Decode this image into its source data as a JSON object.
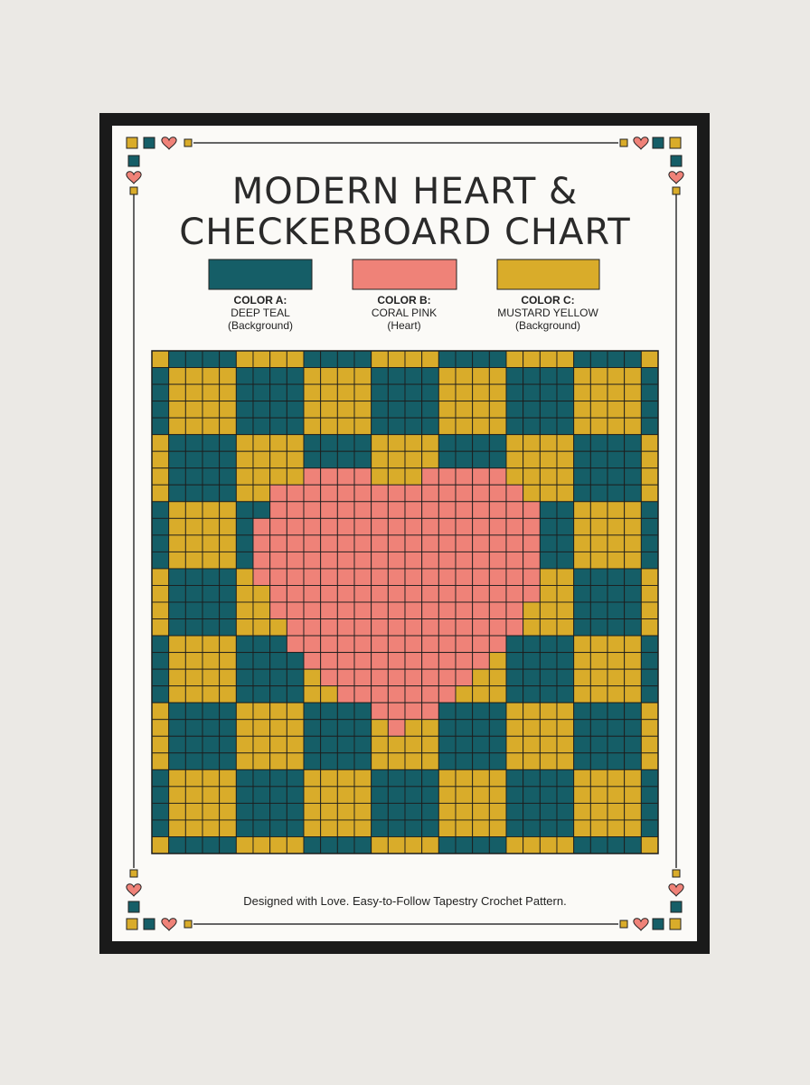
{
  "header": {
    "title": [
      "MODERN HEART &",
      "CHECKERBOARD CHART"
    ]
  },
  "legend": [
    {
      "name": "COLOR A:",
      "label": "DEEP TEAL",
      "note": "(Background)"
    },
    {
      "name": "COLOR B:",
      "label": "CORAL PINK",
      "note": "(Heart)"
    },
    {
      "name": "COLOR C:",
      "label": "MUSTARD YELLOW",
      "note": "(Background)"
    }
  ],
  "footer": "Designed with Love. Easy-to-Follow Tapestry Crochet Pattern."
}
